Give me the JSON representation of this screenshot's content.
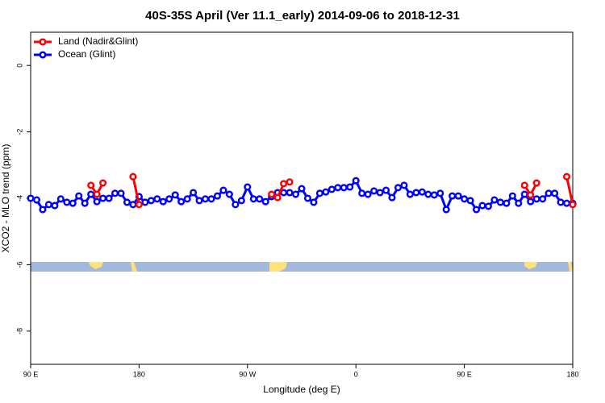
{
  "chart_data": {
    "type": "line",
    "title": "40S-35S April (Ver 11.1_early)   2014-09-06 to 2018-12-31",
    "xlabel": "Longitude (deg E)",
    "ylabel": "XCO2 - MLO trend (ppm)",
    "x": [
      90,
      95,
      100,
      105,
      110,
      115,
      120,
      125,
      130,
      135,
      140,
      145,
      150,
      155,
      160,
      165,
      170,
      175,
      180,
      185,
      190,
      195,
      200,
      205,
      210,
      215,
      220,
      225,
      230,
      235,
      240,
      245,
      250,
      255,
      260,
      265,
      270,
      275,
      280,
      285,
      290,
      295,
      300,
      305,
      310,
      315,
      320,
      325,
      330,
      335,
      340,
      345,
      350,
      355,
      360,
      365,
      370,
      375,
      380,
      385,
      390,
      395,
      400,
      405,
      410,
      415,
      420,
      425,
      430,
      435,
      440,
      445,
      450,
      455,
      460,
      465,
      470,
      475,
      480,
      485,
      490,
      495,
      500,
      505,
      510,
      515,
      520,
      525,
      530,
      535,
      540
    ],
    "xlim": [
      90,
      540
    ],
    "xticks": [
      {
        "value": 90,
        "label": "90 E"
      },
      180,
      {
        "value": 270,
        "label": "90 W"
      },
      {
        "value": 360,
        "label": "0"
      },
      {
        "value": 450,
        "label": "90 E"
      },
      {
        "value": 540,
        "label": "180"
      }
    ],
    "ylim": [
      -9,
      1
    ],
    "yticks": [
      0,
      -2,
      -4,
      -6,
      -8
    ],
    "legend": "top-left",
    "series": [
      {
        "name": "Ocean (Glint)",
        "color": "#0000ff",
        "values": [
          -4.0,
          -4.05,
          -4.34,
          -4.19,
          -4.22,
          -4.02,
          -4.12,
          -4.15,
          -3.93,
          -4.15,
          -3.88,
          -4.1,
          -4.0,
          -4.0,
          -3.85,
          -3.85,
          -4.12,
          -4.19,
          -3.95,
          -4.12,
          -4.07,
          -4.02,
          -4.1,
          -4.02,
          -3.9,
          -4.1,
          -4.02,
          -3.83,
          -4.07,
          -4.02,
          -4.02,
          -3.93,
          -3.76,
          -3.88,
          -4.19,
          -4.07,
          -3.66,
          -4.02,
          -4.02,
          -4.1,
          -3.95,
          -3.83,
          -3.83,
          -3.83,
          -3.88,
          -3.71,
          -4.0,
          -4.12,
          -3.85,
          -3.81,
          -3.73,
          -3.68,
          -3.68,
          -3.66,
          -3.47,
          -3.85,
          -3.88,
          -3.78,
          -3.83,
          -3.76,
          -3.98,
          -3.68,
          -3.61,
          -3.88,
          -3.83,
          -3.81,
          -3.88,
          -3.9,
          -3.85,
          -4.34,
          -3.93,
          -3.93,
          -4.02,
          -4.07,
          -4.34,
          -4.22,
          -4.24,
          -4.05,
          -4.12,
          -4.15,
          -3.93,
          -4.15,
          -3.88,
          -4.1,
          -4.02,
          -4.02,
          -3.85,
          -3.85,
          -4.12,
          -4.15,
          -4.15
        ]
      },
      {
        "name": "Land (Nadir&Glint)",
        "color": "#ff0000",
        "values": [
          null,
          null,
          null,
          null,
          null,
          null,
          null,
          null,
          null,
          null,
          -3.61,
          -3.88,
          -3.54,
          null,
          null,
          null,
          null,
          -3.35,
          -4.19,
          null,
          null,
          null,
          null,
          null,
          null,
          null,
          null,
          null,
          null,
          null,
          null,
          null,
          null,
          null,
          null,
          null,
          null,
          null,
          null,
          null,
          -3.88,
          -3.98,
          -3.56,
          -3.51,
          null,
          null,
          null,
          null,
          null,
          null,
          null,
          null,
          null,
          null,
          null,
          null,
          null,
          null,
          null,
          null,
          null,
          null,
          null,
          null,
          null,
          null,
          null,
          null,
          null,
          null,
          null,
          null,
          null,
          null,
          null,
          null,
          null,
          null,
          null,
          null,
          null,
          null,
          -3.61,
          -3.9,
          -3.54,
          null,
          null,
          null,
          null,
          -3.35,
          -4.19
        ]
      }
    ]
  }
}
